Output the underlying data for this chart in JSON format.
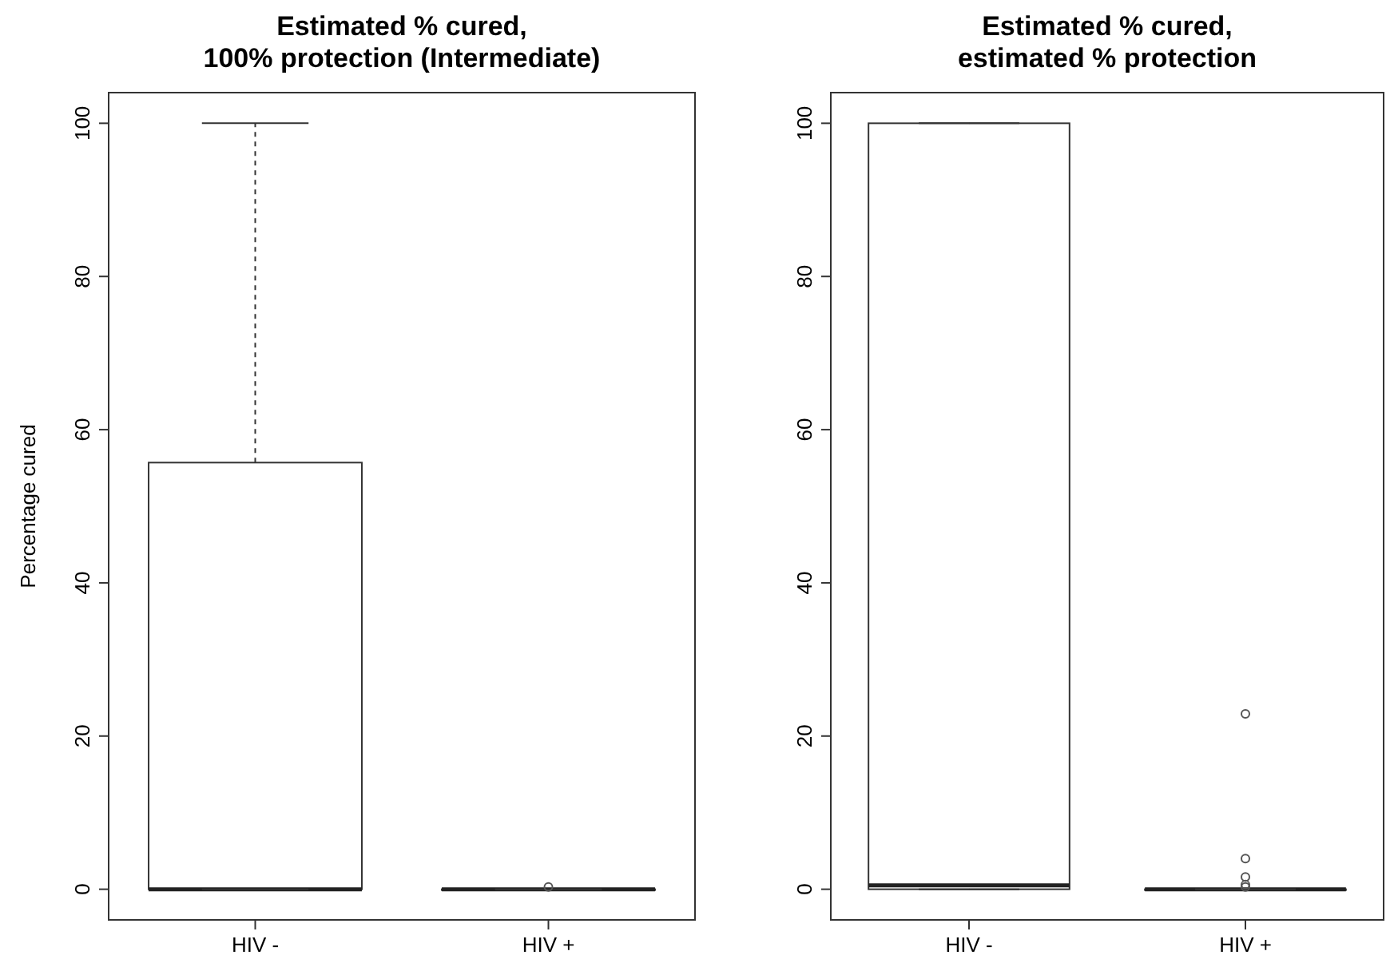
{
  "chart_data": [
    {
      "type": "box",
      "title": "Estimated % cured,\n100% protection (Intermediate)",
      "ylabel": "Percentage cured",
      "categories": [
        "HIV -",
        "HIV +"
      ],
      "ylim": [
        -4,
        104
      ],
      "yticks": [
        0,
        20,
        40,
        60,
        80,
        100
      ],
      "marker": "circle",
      "line_style": "dashed",
      "boxes": [
        {
          "low": 0,
          "q1": 0,
          "median": 0,
          "q3": 55.7,
          "high": 100
        },
        {
          "low": 0,
          "q1": 0,
          "median": 0,
          "q3": 0,
          "high": 0,
          "outliers": [
            0.3
          ]
        }
      ]
    },
    {
      "type": "box",
      "title": "Estimated % cured,\nestimated % protection",
      "categories": [
        "HIV -",
        "HIV +"
      ],
      "ylim": [
        -4,
        104
      ],
      "yticks": [
        0,
        20,
        40,
        60,
        80,
        100
      ],
      "marker": "circle",
      "line_style": "dashed",
      "boxes": [
        {
          "low": 0,
          "q1": 0,
          "median": 0.5,
          "q3": 100,
          "high": 100
        },
        {
          "low": 0,
          "q1": 0,
          "median": 0,
          "q3": 0,
          "high": 0,
          "outliers": [
            22.9,
            4,
            1.6,
            0.6,
            0.3
          ]
        }
      ]
    }
  ]
}
